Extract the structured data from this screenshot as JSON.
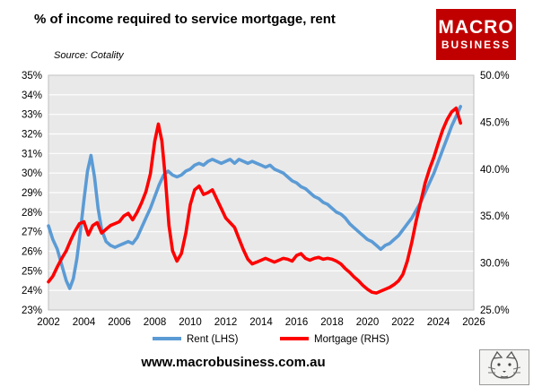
{
  "header": {
    "title": "% of income required to service mortgage, rent",
    "source": "Source: Cotality",
    "logo_line1": "MACRO",
    "logo_line2": "BUSINESS"
  },
  "footer": {
    "url": "www.macrobusiness.com.au",
    "lynx_icon": "lynx-logo"
  },
  "colors": {
    "brand_red": "#c00000",
    "rent_blue": "#5b9bd5",
    "mortgage_red": "#fe0000",
    "plot_bg": "#e9e9e9",
    "grid": "#ffffff",
    "plot_border": "#bfbfbf"
  },
  "chart_data": {
    "type": "line",
    "title": "% of income required to service mortgage, rent",
    "grid": true,
    "legend_position": "bottom",
    "x_axis": {
      "min": 2002,
      "max": 2026,
      "ticks": [
        2002,
        2004,
        2006,
        2008,
        2010,
        2012,
        2014,
        2016,
        2018,
        2020,
        2022,
        2024,
        2026
      ]
    },
    "y_left": {
      "min": 23,
      "max": 35,
      "step": 1,
      "tick_labels": [
        "23%",
        "24%",
        "25%",
        "26%",
        "27%",
        "28%",
        "29%",
        "30%",
        "31%",
        "32%",
        "33%",
        "34%",
        "35%"
      ]
    },
    "y_right": {
      "min": 25,
      "max": 50,
      "step": 5,
      "tick_labels": [
        "25.0%",
        "30.0%",
        "35.0%",
        "40.0%",
        "45.0%",
        "50.0%"
      ]
    },
    "legend": [
      {
        "name": "Rent (LHS)",
        "color": "#5b9bd5"
      },
      {
        "name": "Mortgage (RHS)",
        "color": "#fe0000"
      }
    ],
    "series": [
      {
        "name": "Rent (LHS)",
        "axis": "left",
        "color": "#5b9bd5",
        "points": [
          [
            2002.0,
            27.3
          ],
          [
            2002.25,
            26.6
          ],
          [
            2002.5,
            26.1
          ],
          [
            2002.75,
            25.3
          ],
          [
            2003.0,
            24.5
          ],
          [
            2003.2,
            24.1
          ],
          [
            2003.4,
            24.6
          ],
          [
            2003.6,
            25.6
          ],
          [
            2003.8,
            27.0
          ],
          [
            2004.0,
            28.6
          ],
          [
            2004.2,
            30.1
          ],
          [
            2004.4,
            30.9
          ],
          [
            2004.6,
            29.8
          ],
          [
            2004.8,
            28.2
          ],
          [
            2005.0,
            27.1
          ],
          [
            2005.25,
            26.5
          ],
          [
            2005.5,
            26.3
          ],
          [
            2005.75,
            26.2
          ],
          [
            2006.0,
            26.3
          ],
          [
            2006.25,
            26.4
          ],
          [
            2006.5,
            26.5
          ],
          [
            2006.75,
            26.4
          ],
          [
            2007.0,
            26.7
          ],
          [
            2007.25,
            27.2
          ],
          [
            2007.5,
            27.7
          ],
          [
            2007.75,
            28.2
          ],
          [
            2008.0,
            28.8
          ],
          [
            2008.25,
            29.4
          ],
          [
            2008.5,
            29.9
          ],
          [
            2008.75,
            30.1
          ],
          [
            2009.0,
            29.9
          ],
          [
            2009.25,
            29.8
          ],
          [
            2009.5,
            29.9
          ],
          [
            2009.75,
            30.1
          ],
          [
            2010.0,
            30.2
          ],
          [
            2010.25,
            30.4
          ],
          [
            2010.5,
            30.5
          ],
          [
            2010.75,
            30.4
          ],
          [
            2011.0,
            30.6
          ],
          [
            2011.25,
            30.7
          ],
          [
            2011.5,
            30.6
          ],
          [
            2011.75,
            30.5
          ],
          [
            2012.0,
            30.6
          ],
          [
            2012.25,
            30.7
          ],
          [
            2012.5,
            30.5
          ],
          [
            2012.75,
            30.7
          ],
          [
            2013.0,
            30.6
          ],
          [
            2013.25,
            30.5
          ],
          [
            2013.5,
            30.6
          ],
          [
            2013.75,
            30.5
          ],
          [
            2014.0,
            30.4
          ],
          [
            2014.25,
            30.3
          ],
          [
            2014.5,
            30.4
          ],
          [
            2014.75,
            30.2
          ],
          [
            2015.0,
            30.1
          ],
          [
            2015.25,
            30.0
          ],
          [
            2015.5,
            29.8
          ],
          [
            2015.75,
            29.6
          ],
          [
            2016.0,
            29.5
          ],
          [
            2016.25,
            29.3
          ],
          [
            2016.5,
            29.2
          ],
          [
            2016.75,
            29.0
          ],
          [
            2017.0,
            28.8
          ],
          [
            2017.25,
            28.7
          ],
          [
            2017.5,
            28.5
          ],
          [
            2017.75,
            28.4
          ],
          [
            2018.0,
            28.2
          ],
          [
            2018.25,
            28.0
          ],
          [
            2018.5,
            27.9
          ],
          [
            2018.75,
            27.7
          ],
          [
            2019.0,
            27.4
          ],
          [
            2019.25,
            27.2
          ],
          [
            2019.5,
            27.0
          ],
          [
            2019.75,
            26.8
          ],
          [
            2020.0,
            26.6
          ],
          [
            2020.25,
            26.5
          ],
          [
            2020.5,
            26.3
          ],
          [
            2020.75,
            26.1
          ],
          [
            2021.0,
            26.3
          ],
          [
            2021.25,
            26.4
          ],
          [
            2021.5,
            26.6
          ],
          [
            2021.75,
            26.8
          ],
          [
            2022.0,
            27.1
          ],
          [
            2022.25,
            27.4
          ],
          [
            2022.5,
            27.7
          ],
          [
            2022.75,
            28.1
          ],
          [
            2023.0,
            28.5
          ],
          [
            2023.25,
            29.0
          ],
          [
            2023.5,
            29.5
          ],
          [
            2023.75,
            30.0
          ],
          [
            2024.0,
            30.6
          ],
          [
            2024.25,
            31.2
          ],
          [
            2024.5,
            31.8
          ],
          [
            2024.75,
            32.4
          ],
          [
            2025.0,
            32.9
          ],
          [
            2025.25,
            33.4
          ]
        ]
      },
      {
        "name": "Mortgage (RHS)",
        "axis": "right",
        "color": "#fe0000",
        "points": [
          [
            2002.0,
            28.0
          ],
          [
            2002.25,
            28.6
          ],
          [
            2002.5,
            29.6
          ],
          [
            2002.75,
            30.5
          ],
          [
            2003.0,
            31.3
          ],
          [
            2003.25,
            32.4
          ],
          [
            2003.5,
            33.4
          ],
          [
            2003.75,
            34.2
          ],
          [
            2004.0,
            34.4
          ],
          [
            2004.25,
            33.0
          ],
          [
            2004.5,
            34.0
          ],
          [
            2004.75,
            34.3
          ],
          [
            2005.0,
            33.2
          ],
          [
            2005.25,
            33.6
          ],
          [
            2005.5,
            34.0
          ],
          [
            2005.75,
            34.2
          ],
          [
            2006.0,
            34.4
          ],
          [
            2006.25,
            35.0
          ],
          [
            2006.5,
            35.3
          ],
          [
            2006.75,
            34.6
          ],
          [
            2007.0,
            35.4
          ],
          [
            2007.25,
            36.4
          ],
          [
            2007.5,
            37.6
          ],
          [
            2007.75,
            39.5
          ],
          [
            2008.0,
            43.0
          ],
          [
            2008.2,
            44.8
          ],
          [
            2008.4,
            43.0
          ],
          [
            2008.6,
            39.0
          ],
          [
            2008.8,
            34.0
          ],
          [
            2009.0,
            31.3
          ],
          [
            2009.25,
            30.2
          ],
          [
            2009.5,
            31.0
          ],
          [
            2009.75,
            33.2
          ],
          [
            2010.0,
            36.2
          ],
          [
            2010.25,
            37.8
          ],
          [
            2010.5,
            38.2
          ],
          [
            2010.75,
            37.3
          ],
          [
            2011.0,
            37.5
          ],
          [
            2011.25,
            37.8
          ],
          [
            2011.5,
            36.8
          ],
          [
            2011.75,
            35.8
          ],
          [
            2012.0,
            34.8
          ],
          [
            2012.25,
            34.3
          ],
          [
            2012.5,
            33.8
          ],
          [
            2012.75,
            32.6
          ],
          [
            2013.0,
            31.4
          ],
          [
            2013.25,
            30.4
          ],
          [
            2013.5,
            29.9
          ],
          [
            2013.75,
            30.1
          ],
          [
            2014.0,
            30.3
          ],
          [
            2014.25,
            30.5
          ],
          [
            2014.5,
            30.3
          ],
          [
            2014.75,
            30.1
          ],
          [
            2015.0,
            30.3
          ],
          [
            2015.25,
            30.5
          ],
          [
            2015.5,
            30.4
          ],
          [
            2015.75,
            30.2
          ],
          [
            2016.0,
            30.8
          ],
          [
            2016.25,
            31.0
          ],
          [
            2016.5,
            30.5
          ],
          [
            2016.75,
            30.3
          ],
          [
            2017.0,
            30.5
          ],
          [
            2017.25,
            30.6
          ],
          [
            2017.5,
            30.4
          ],
          [
            2017.75,
            30.5
          ],
          [
            2018.0,
            30.4
          ],
          [
            2018.25,
            30.2
          ],
          [
            2018.5,
            29.9
          ],
          [
            2018.75,
            29.4
          ],
          [
            2019.0,
            29.0
          ],
          [
            2019.25,
            28.5
          ],
          [
            2019.5,
            28.1
          ],
          [
            2019.75,
            27.6
          ],
          [
            2020.0,
            27.2
          ],
          [
            2020.25,
            26.9
          ],
          [
            2020.5,
            26.8
          ],
          [
            2020.75,
            27.0
          ],
          [
            2021.0,
            27.2
          ],
          [
            2021.25,
            27.4
          ],
          [
            2021.5,
            27.7
          ],
          [
            2021.75,
            28.1
          ],
          [
            2022.0,
            28.8
          ],
          [
            2022.25,
            30.2
          ],
          [
            2022.5,
            32.2
          ],
          [
            2022.75,
            34.5
          ],
          [
            2023.0,
            36.5
          ],
          [
            2023.25,
            38.5
          ],
          [
            2023.5,
            40.0
          ],
          [
            2023.75,
            41.3
          ],
          [
            2024.0,
            42.8
          ],
          [
            2024.25,
            44.2
          ],
          [
            2024.5,
            45.3
          ],
          [
            2024.75,
            46.1
          ],
          [
            2025.0,
            46.5
          ],
          [
            2025.25,
            44.9
          ]
        ]
      }
    ]
  }
}
